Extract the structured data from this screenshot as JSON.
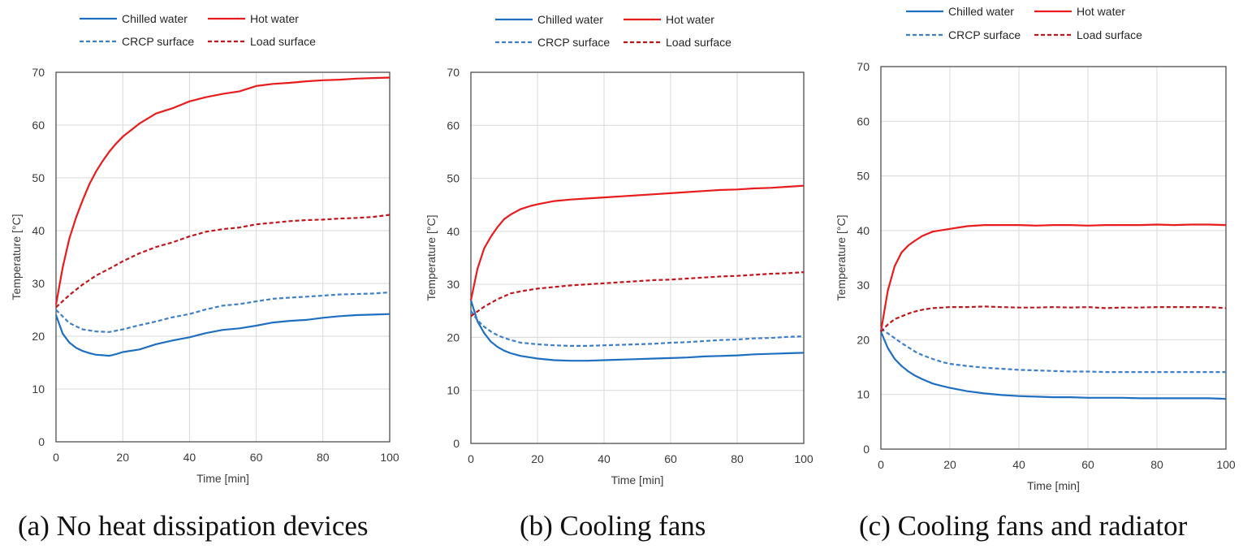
{
  "colors": {
    "chilled": "#1f6fc0",
    "hot": "#e81c1c",
    "crcp": "#3f7fc8",
    "load": "#c0161b"
  },
  "captions": [
    "(a) No heat dissipation devices",
    "(b) Cooling fans",
    "(c) Cooling fans and radiator"
  ],
  "chart_data": [
    {
      "type": "line",
      "title": "(a) No heat dissipation devices",
      "xlabel": "Time [min]",
      "ylabel": "Temperature [°C]",
      "xlim": [
        0,
        100
      ],
      "ylim": [
        0,
        70
      ],
      "xticks": [
        "0",
        "20",
        "40",
        "60",
        "80",
        "100"
      ],
      "yticks": [
        "0",
        "10",
        "20",
        "30",
        "40",
        "50",
        "60",
        "70"
      ],
      "legend": [
        "Chilled water",
        "Hot water",
        "CRCP surface",
        "Load surface"
      ],
      "series": [
        {
          "name": "Chilled water",
          "style": "solid",
          "x": [
            0,
            2,
            4,
            6,
            8,
            10,
            12,
            14,
            16,
            18,
            20,
            25,
            30,
            35,
            40,
            45,
            50,
            55,
            60,
            65,
            70,
            75,
            80,
            85,
            90,
            95,
            100
          ],
          "values": [
            24,
            20.5,
            18.8,
            17.8,
            17.2,
            16.8,
            16.5,
            16.4,
            16.3,
            16.6,
            17,
            17.5,
            18.5,
            19.2,
            19.8,
            20.6,
            21.2,
            21.5,
            22,
            22.6,
            22.9,
            23.1,
            23.5,
            23.8,
            24,
            24.1,
            24.2
          ]
        },
        {
          "name": "Hot water",
          "style": "solid",
          "x": [
            0,
            2,
            4,
            6,
            8,
            10,
            12,
            14,
            16,
            18,
            20,
            25,
            30,
            35,
            40,
            45,
            50,
            55,
            60,
            65,
            70,
            75,
            80,
            85,
            90,
            95,
            100
          ],
          "values": [
            26,
            33,
            38.5,
            42.5,
            45.8,
            48.8,
            51.2,
            53.2,
            55,
            56.5,
            57.8,
            60.3,
            62.2,
            63.2,
            64.5,
            65.3,
            65.9,
            66.4,
            67.4,
            67.8,
            68,
            68.3,
            68.5,
            68.6,
            68.8,
            68.9,
            69
          ]
        },
        {
          "name": "CRCP surface",
          "style": "dashed",
          "x": [
            0,
            4,
            8,
            12,
            16,
            20,
            25,
            30,
            35,
            40,
            45,
            50,
            55,
            60,
            65,
            70,
            75,
            80,
            85,
            90,
            95,
            100
          ],
          "values": [
            25,
            22.5,
            21.3,
            20.9,
            20.8,
            21.3,
            22.1,
            22.8,
            23.6,
            24.2,
            25.1,
            25.8,
            26.1,
            26.6,
            27.1,
            27.3,
            27.5,
            27.7,
            27.9,
            28,
            28.1,
            28.3
          ]
        },
        {
          "name": "Load surface",
          "style": "dashed",
          "x": [
            0,
            4,
            8,
            12,
            16,
            20,
            25,
            30,
            35,
            40,
            45,
            50,
            55,
            60,
            65,
            70,
            75,
            80,
            85,
            90,
            95,
            100
          ],
          "values": [
            25.5,
            27.8,
            29.8,
            31.5,
            32.8,
            34.2,
            35.7,
            36.9,
            37.8,
            38.9,
            39.8,
            40.3,
            40.6,
            41.2,
            41.5,
            41.8,
            42,
            42.1,
            42.3,
            42.4,
            42.6,
            43
          ]
        }
      ]
    },
    {
      "type": "line",
      "title": "(b) Cooling fans",
      "xlabel": "Time [min]",
      "ylabel": "Temperature [°C]",
      "xlim": [
        0,
        100
      ],
      "ylim": [
        0,
        70
      ],
      "xticks": [
        "0",
        "20",
        "40",
        "60",
        "80",
        "100"
      ],
      "yticks": [
        "0",
        "10",
        "20",
        "30",
        "40",
        "50",
        "60",
        "70"
      ],
      "legend": [
        "Chilled water",
        "Hot water",
        "CRCP surface",
        "Load surface"
      ],
      "series": [
        {
          "name": "Chilled water",
          "style": "solid",
          "x": [
            0,
            2,
            4,
            6,
            8,
            10,
            12,
            15,
            18,
            20,
            25,
            30,
            35,
            40,
            45,
            50,
            55,
            60,
            65,
            70,
            75,
            80,
            85,
            90,
            95,
            100
          ],
          "values": [
            27,
            23,
            20.8,
            19.2,
            18.2,
            17.5,
            17,
            16.5,
            16.2,
            16,
            15.7,
            15.6,
            15.6,
            15.7,
            15.8,
            15.9,
            16,
            16.1,
            16.2,
            16.4,
            16.5,
            16.6,
            16.8,
            16.9,
            17,
            17.1
          ]
        },
        {
          "name": "Hot water",
          "style": "solid",
          "x": [
            0,
            2,
            4,
            6,
            8,
            10,
            12,
            15,
            18,
            20,
            25,
            30,
            35,
            40,
            45,
            50,
            55,
            60,
            65,
            70,
            75,
            80,
            85,
            90,
            95,
            100
          ],
          "values": [
            27,
            33,
            36.8,
            39,
            40.8,
            42.3,
            43.2,
            44.2,
            44.8,
            45.1,
            45.7,
            46,
            46.2,
            46.4,
            46.6,
            46.8,
            47,
            47.2,
            47.4,
            47.6,
            47.8,
            47.9,
            48.1,
            48.2,
            48.4,
            48.6
          ]
        },
        {
          "name": "CRCP surface",
          "style": "dashed",
          "x": [
            0,
            2,
            4,
            6,
            8,
            10,
            12,
            15,
            20,
            25,
            30,
            35,
            40,
            45,
            50,
            55,
            60,
            65,
            70,
            75,
            80,
            85,
            90,
            95,
            100
          ],
          "values": [
            25,
            23.2,
            22,
            21.1,
            20.4,
            19.9,
            19.5,
            19,
            18.7,
            18.5,
            18.4,
            18.4,
            18.5,
            18.6,
            18.7,
            18.8,
            19,
            19.1,
            19.3,
            19.5,
            19.6,
            19.8,
            19.9,
            20.1,
            20.2
          ]
        },
        {
          "name": "Load surface",
          "style": "dashed",
          "x": [
            0,
            4,
            8,
            12,
            16,
            20,
            25,
            30,
            35,
            40,
            45,
            50,
            55,
            60,
            65,
            70,
            75,
            80,
            85,
            90,
            95,
            100
          ],
          "values": [
            24,
            25.8,
            27.2,
            28.3,
            28.8,
            29.2,
            29.5,
            29.8,
            30,
            30.2,
            30.4,
            30.6,
            30.8,
            30.9,
            31.1,
            31.3,
            31.5,
            31.6,
            31.8,
            32,
            32.1,
            32.3
          ]
        }
      ]
    },
    {
      "type": "line",
      "title": "(c) Cooling fans and radiator",
      "xlabel": "Time [min]",
      "ylabel": "Temperature [°C]",
      "xlim": [
        0,
        100
      ],
      "ylim": [
        0,
        70
      ],
      "xticks": [
        "0",
        "20",
        "40",
        "60",
        "80",
        "100"
      ],
      "yticks": [
        "0",
        "10",
        "20",
        "30",
        "40",
        "50",
        "60",
        "70"
      ],
      "legend": [
        "Chilled water",
        "Hot water",
        "CRCP surface",
        "Load surface"
      ],
      "series": [
        {
          "name": "Chilled water",
          "style": "solid",
          "x": [
            0,
            2,
            4,
            6,
            8,
            10,
            12,
            15,
            18,
            20,
            25,
            30,
            35,
            40,
            45,
            50,
            55,
            60,
            65,
            70,
            75,
            80,
            85,
            90,
            95,
            100
          ],
          "values": [
            21.5,
            18.5,
            16.5,
            15.2,
            14.2,
            13.4,
            12.8,
            12,
            11.5,
            11.2,
            10.6,
            10.2,
            9.9,
            9.7,
            9.6,
            9.5,
            9.5,
            9.4,
            9.4,
            9.4,
            9.3,
            9.3,
            9.3,
            9.3,
            9.3,
            9.2
          ]
        },
        {
          "name": "Hot water",
          "style": "solid",
          "x": [
            0,
            2,
            4,
            6,
            8,
            10,
            12,
            15,
            18,
            20,
            25,
            30,
            35,
            40,
            45,
            50,
            55,
            60,
            65,
            70,
            75,
            80,
            85,
            90,
            95,
            100
          ],
          "values": [
            21.5,
            29,
            33.5,
            36,
            37.3,
            38.2,
            39,
            39.8,
            40.1,
            40.3,
            40.8,
            41,
            41,
            41,
            40.9,
            41,
            41,
            40.9,
            41,
            41,
            41,
            41.1,
            41,
            41.1,
            41.1,
            41
          ]
        },
        {
          "name": "CRCP surface",
          "style": "dashed",
          "x": [
            0,
            2,
            4,
            6,
            8,
            10,
            12,
            15,
            18,
            20,
            25,
            30,
            35,
            40,
            45,
            50,
            55,
            60,
            65,
            70,
            75,
            80,
            85,
            90,
            95,
            100
          ],
          "values": [
            22,
            21.2,
            20.3,
            19.4,
            18.6,
            17.8,
            17.2,
            16.5,
            15.9,
            15.6,
            15.2,
            14.9,
            14.7,
            14.5,
            14.4,
            14.3,
            14.2,
            14.2,
            14.1,
            14.1,
            14.1,
            14.1,
            14.1,
            14.1,
            14.1,
            14.1
          ]
        },
        {
          "name": "Load surface",
          "style": "dashed",
          "x": [
            0,
            2,
            4,
            6,
            8,
            10,
            12,
            15,
            18,
            20,
            25,
            30,
            35,
            40,
            45,
            50,
            55,
            60,
            65,
            70,
            75,
            80,
            85,
            90,
            95,
            100
          ],
          "values": [
            21.5,
            22.8,
            23.8,
            24.3,
            24.8,
            25.2,
            25.5,
            25.8,
            25.9,
            26,
            26,
            26.1,
            26,
            25.9,
            25.9,
            26,
            25.9,
            26,
            25.8,
            25.9,
            25.9,
            26,
            26,
            26,
            26,
            25.8
          ]
        }
      ]
    }
  ]
}
